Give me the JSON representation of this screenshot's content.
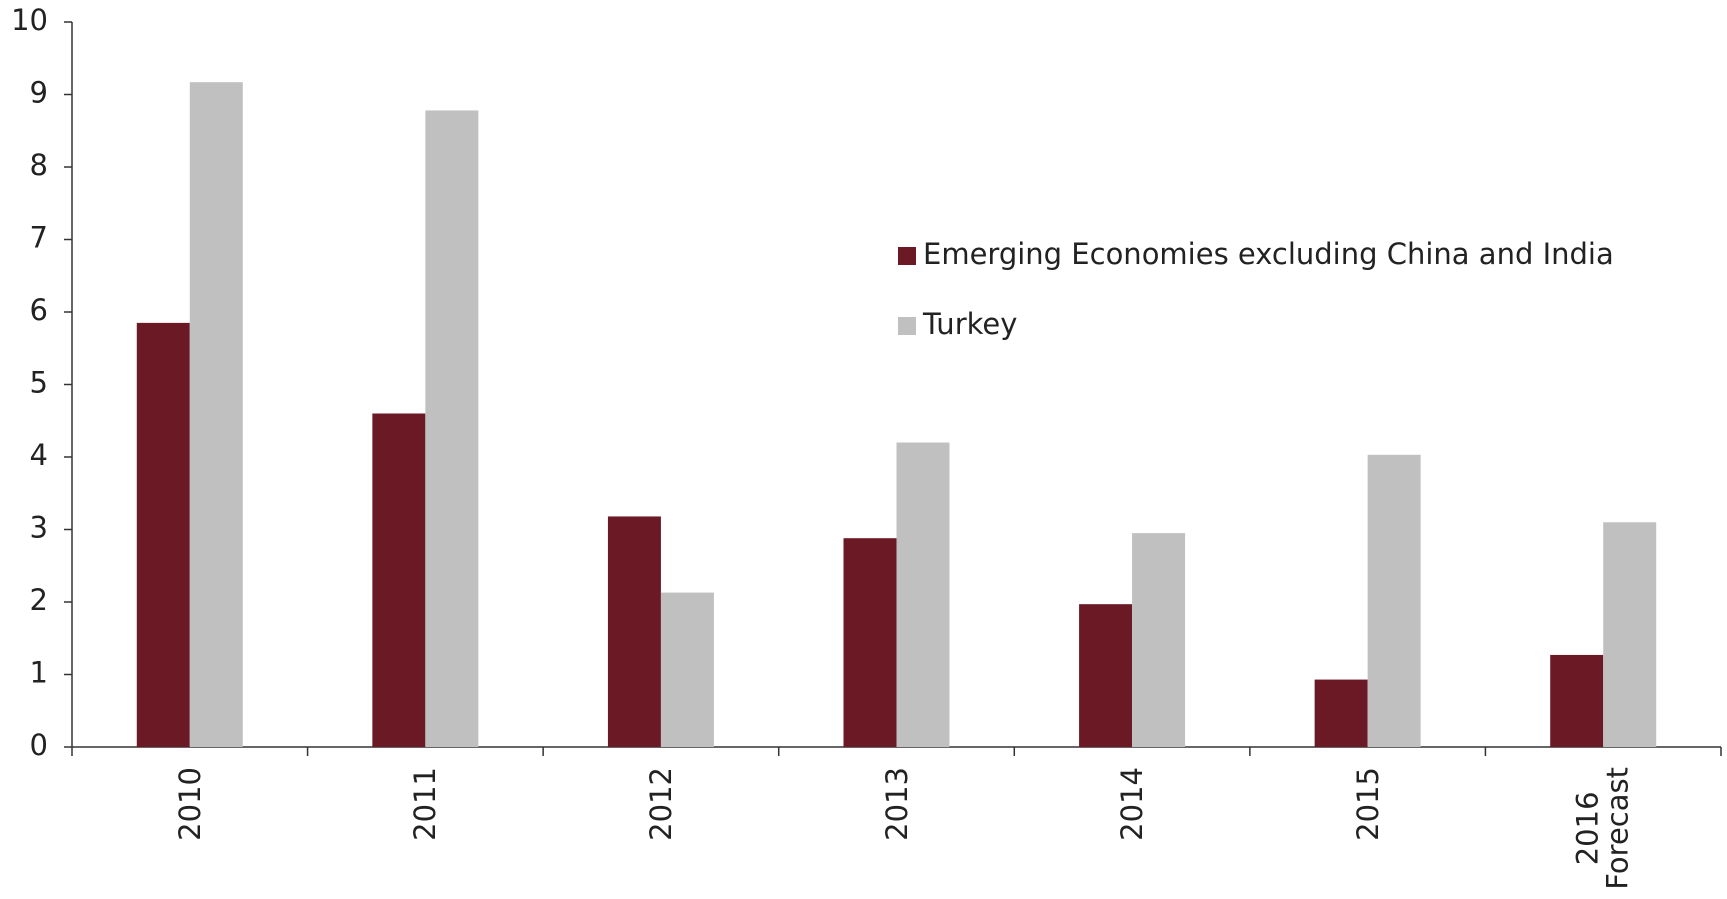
{
  "chart_data": {
    "type": "bar",
    "categories": [
      "2010",
      "2011",
      "2012",
      "2013",
      "2014",
      "2015",
      "2016\nForecast"
    ],
    "series": [
      {
        "name": "Emerging Economies excluding China and India",
        "color": "#6b1a25",
        "values": [
          5.85,
          4.6,
          3.18,
          2.88,
          1.97,
          0.93,
          1.27
        ]
      },
      {
        "name": "Turkey",
        "color": "#c0c0c0",
        "values": [
          9.17,
          8.78,
          2.13,
          4.2,
          2.95,
          4.03,
          3.1
        ]
      }
    ],
    "ylim": [
      0,
      10
    ],
    "yticks": [
      0,
      1,
      2,
      3,
      4,
      5,
      6,
      7,
      8,
      9,
      10
    ],
    "grid": false,
    "legend": "upper-right"
  }
}
